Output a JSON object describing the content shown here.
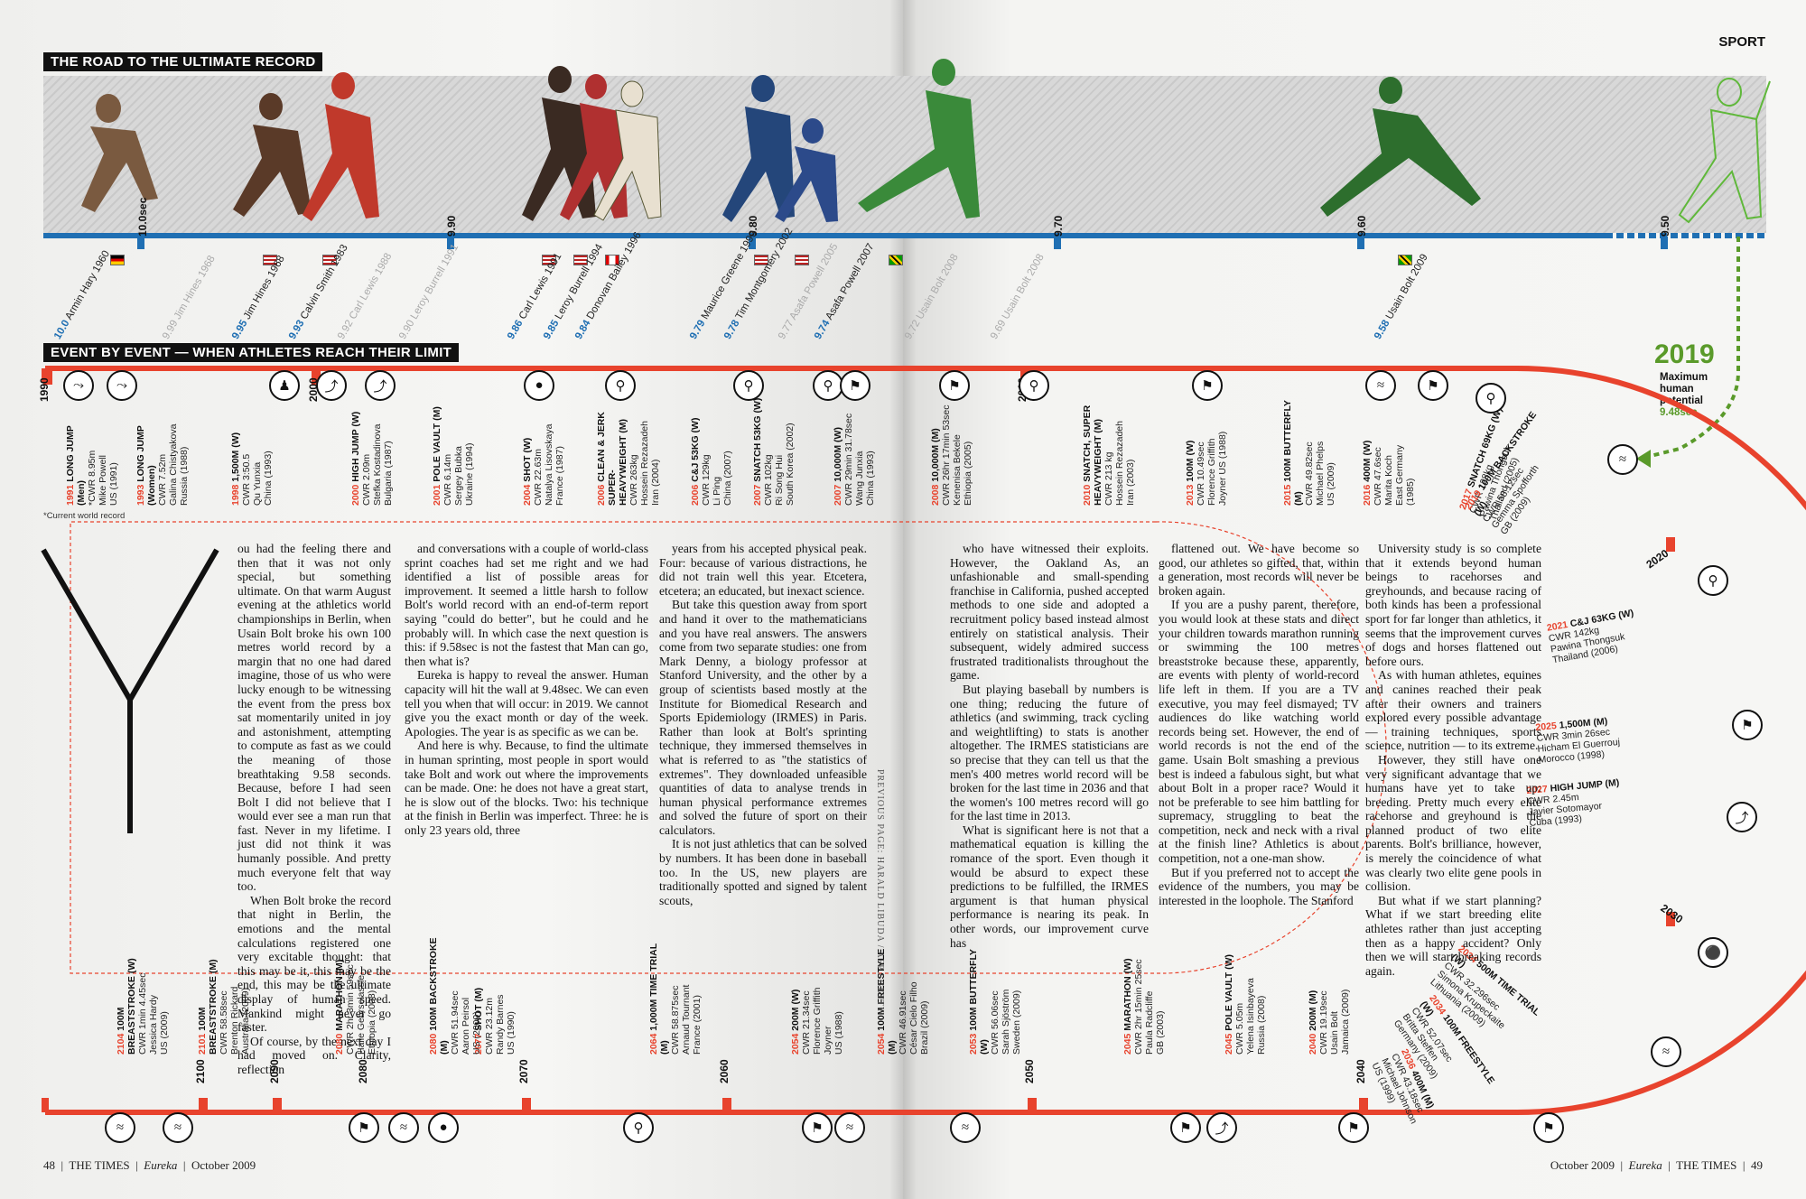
{
  "section": "SPORT",
  "banner1": "THE ROAD TO THE ULTIMATE RECORD",
  "banner2": "EVENT BY EVENT — WHEN ATHLETES REACH THEIR LIMIT",
  "axis_labels": [
    "10.0sec",
    "9.90",
    "9.80",
    "9.70",
    "9.60",
    "9.50"
  ],
  "sprint_records": [
    {
      "time": "10.0",
      "name": "Armin Hary 1960",
      "faded": false
    },
    {
      "time": "9.99",
      "name": "Jim Hines 1968",
      "faded": true
    },
    {
      "time": "9.95",
      "name": "Jim Hines 1968",
      "faded": false
    },
    {
      "time": "9.93",
      "name": "Calvin Smith 1983",
      "faded": false
    },
    {
      "time": "9.92",
      "name": "Carl Lewis 1988",
      "faded": true
    },
    {
      "time": "9.90",
      "name": "Leroy Burrell 1991",
      "faded": true
    },
    {
      "time": "9.86",
      "name": "Carl Lewis 1991",
      "faded": false
    },
    {
      "time": "9.85",
      "name": "Leroy Burrell 1994",
      "faded": false
    },
    {
      "time": "9.84",
      "name": "Donovan Bailey 1996",
      "faded": false
    },
    {
      "time": "9.79",
      "name": "Maurice Greene 1999",
      "faded": false
    },
    {
      "time": "9.78",
      "name": "Tim Montgomery 2002",
      "faded": false
    },
    {
      "time": "9.77",
      "name": "Asafa Powell 2005",
      "faded": true
    },
    {
      "time": "9.74",
      "name": "Asafa Powell 2007",
      "faded": false
    },
    {
      "time": "9.72",
      "name": "Usain Bolt 2008",
      "faded": true
    },
    {
      "time": "9.69",
      "name": "Usain Bolt 2008",
      "faded": true
    },
    {
      "time": "9.58",
      "name": "Usain Bolt 2009",
      "faded": false
    }
  ],
  "max_potential": {
    "year": "2019",
    "line1": "Maximum",
    "line2": "human",
    "line3": "potential",
    "value": "9.48sec"
  },
  "decades_top": [
    "1990",
    "2000",
    "2010"
  ],
  "decades_curve": [
    "2020",
    "2030"
  ],
  "decades_bottom": [
    "2040",
    "2050",
    "2060",
    "2070",
    "2080",
    "2090",
    "2100"
  ],
  "events_top": [
    {
      "year": "1991",
      "event": "LONG JUMP\n(Men)",
      "detail": "*CWR 8.95m\nMike Powell\nUS (1991)"
    },
    {
      "year": "1993",
      "event": "LONG JUMP\n(Women)",
      "detail": "CWR 7.52m\nGalina Chistyakova\nRussia (1988)"
    },
    {
      "year": "1998",
      "event": "1,500M (W)",
      "detail": "CWR 3:50.5\nQu Yunxia\nChina (1993)"
    },
    {
      "year": "2000",
      "event": "HIGH JUMP (W)",
      "detail": "CWR 2.09m\nStefka Kostadinova\nBulgaria (1987)"
    },
    {
      "year": "2001",
      "event": "POLE VAULT (M)",
      "detail": "CWR 6.14m\nSergey Bubka\nUkraine (1994)"
    },
    {
      "year": "2004",
      "event": "SHOT (W)",
      "detail": "CWR 22.63m\nNatalya Lisovskaya\nFrance (1987)"
    },
    {
      "year": "2006",
      "event": "CLEAN & JERK\nSUPER-\nHEAVYWEIGHT (M)",
      "detail": "CWR 263kg\nHossein Rezazadeh\nIran (2004)"
    },
    {
      "year": "2006",
      "event": "C&J 53KG (W)",
      "detail": "CWR 129kg\nLi Ping\nChina (2007)"
    },
    {
      "year": "2007",
      "event": "SNATCH 53KG (W)",
      "detail": "CWR 102kg\nRi Song Hui\nSouth Korea (2002)"
    },
    {
      "year": "2007",
      "event": "10,000M (W)",
      "detail": "CWR 29min 31.78sec\nWang Junxia\nChina (1993)"
    },
    {
      "year": "2008",
      "event": "10,000M (M)",
      "detail": "CWR 26hr 17min 53sec\nKenenisa Bekele\nEthiopia (2005)"
    },
    {
      "year": "2010",
      "event": "SNATCH, SUPER\nHEAVYWEIGHT (M)",
      "detail": "CWR 213 kg\nHossein Rezazadeh\nIran (2003)"
    },
    {
      "year": "2013",
      "event": "100M (W)",
      "detail": "CWR 10.49sec\nFlorence Griffith\nJoyner US (1988)"
    },
    {
      "year": "2015",
      "event": "100M BUTTERFLY\n(M)",
      "detail": "CWR 49.82sec\nMichael Phelps\nUS (2009)"
    },
    {
      "year": "2016",
      "event": "400M (W)",
      "detail": "CWR 47.6sec\nMarita Koch\nEast Germany\n(1985)"
    },
    {
      "year": "2017",
      "event": "SNATCH 69KG (W)",
      "detail": "CWR 128kg\nPawina Thongsuk\nThailand (2005)"
    }
  ],
  "events_curve": [
    {
      "year": "2019",
      "event": "100M BACKSTROKE\n(W)",
      "detail": "CWR 58.12sec\nGemma Spofforth\nGB (2009)"
    },
    {
      "year": "2021",
      "event": "C&J 63KG (W)",
      "detail": "CWR 142kg\nPawina Thongsuk\nThailand (2006)"
    },
    {
      "year": "2025",
      "event": "1,500M (M)",
      "detail": "CWR 3min 26sec\nHicham El Guerrouj\nMorocco (1998)"
    },
    {
      "year": "2027",
      "event": "HIGH JUMP (M)",
      "detail": "CWR 2.45m\nJavier Sotomayor\nCuba (1993)"
    },
    {
      "year": "2034",
      "event": "500M TIME TRIAL\n(W)",
      "detail": "CWR 32.296sec\nSimona Krupeckaite\nLithuania (2009)"
    },
    {
      "year": "2034",
      "event": "100M FREESTYLE\n(W)",
      "detail": "CWR 52.07sec\nBritta Steffen\nGermany (2009)"
    },
    {
      "year": "2036",
      "event": "400M (M)",
      "detail": "CWR 43.18sec\nMichael Johnson\nUS (1999)"
    }
  ],
  "events_bottom": [
    {
      "year": "2040",
      "event": "200M (M)",
      "detail": "CWR 19.19sec\nUsain Bolt\nJamaica (2009)"
    },
    {
      "year": "2045",
      "event": "POLE VAULT (W)",
      "detail": "CWR 5.05m\nYelena Isinbayeva\nRussia (2008)"
    },
    {
      "year": "2045",
      "event": "MARATHON (W)",
      "detail": "CWR 2hr 15min 25sec\nPaula Radcliffe\nGB (2003)"
    },
    {
      "year": "2053",
      "event": "100M BUTTERFLY\n(W)",
      "detail": "CWR 56.06sec\nSarah Sjöström\nSweden (2009)"
    },
    {
      "year": "2054",
      "event": "100M FREESTYLE\n(M)",
      "detail": "CWR 46.91sec\nCésar Cielo Filho\nBrazil (2009)"
    },
    {
      "year": "2054",
      "event": "200M (W)",
      "detail": "CWR 21.34sec\nFlorence Griffith\nJoyner\nUS (1988)"
    },
    {
      "year": "2064",
      "event": "1,000M TIME TRIAL\n(M)",
      "detail": "CWR 58.875sec\nArnaud Tournant\nFrance (2001)"
    },
    {
      "year": "2077",
      "event": "SHOT (M)",
      "detail": "CWR 23.12m\nRandy Barnes\nUS (1990)"
    },
    {
      "year": "2080",
      "event": "100M BACKSTROKE\n(M)",
      "detail": "CWR 51.94sec\nAaron Peirsol\nUS (2009)"
    },
    {
      "year": "2080",
      "event": "MARATHON (M)",
      "detail": "CWR 2hr 3min 59sec\nHaile Gebrselassie\nEthiopia (2008)"
    },
    {
      "year": "2101",
      "event": "100M\nBREASTSTROKE (M)",
      "detail": "CWR 58.58sec\nBrenton Rickard\nAustralia (2009)"
    },
    {
      "year": "2104",
      "event": "100M\nBREASTSTROKE (W)",
      "detail": "CWR 1min 4.45sec\nJessica Hardy\nUS (2009)"
    }
  ],
  "note": "*Current world record",
  "credit": "PREVIOUS PAGE: HARALD LIBUDA / AFP / GETTY",
  "dropcap": "Y",
  "article": {
    "col1": [
      "ou had the feeling there and then that it was not only special, but something ultimate. On that warm August evening at the athletics world championships in Berlin, when Usain Bolt broke his own 100 metres world record by a margin that no one had dared imagine, those of us who were lucky enough to be witnessing the event from the press box sat momentarily united in joy and astonishment, attempting to compute as fast as we could the meaning of those breathtaking 9.58 seconds. Because, before I had seen Bolt I did not believe that I would ever see a man run that fast. Never in my lifetime. I just did not think it was humanly possible. And pretty much everyone felt that way too.",
      "When Bolt broke the record that night in Berlin, the emotions and the mental calculations registered one very excitable thought: that this may be it, this may be the end, this may be the ultimate display of human speed. Mankind might never go faster.",
      "Of course, by the next day I had moved on. Clarity, reflection"
    ],
    "col2": [
      "and conversations with a couple of world-class sprint coaches had set me right and we had identified a list of possible areas for improvement. It seemed a little harsh to follow Bolt's world record with an end-of-term report saying \"could do better\", but he could and he probably will. In which case the next question is this: if 9.58sec is not the fastest that Man can go, then what is?",
      "Eureka is happy to reveal the answer. Human capacity will hit the wall at 9.48sec. We can even tell you when that will occur: in 2019. We cannot give you the exact month or day of the week. Apologies. The year is as specific as we can be.",
      "And here is why. Because, to find the ultimate in human sprinting, most people in sport would take Bolt and work out where the improvements can be made. One: he does not have a great start, he is slow out of the blocks. Two: his technique at the finish in Berlin was imperfect. Three: he is only 23 years old, three"
    ],
    "col3": [
      "years from his accepted physical peak. Four: because of various distractions, he did not train well this year. Etcetera, etcetera; an educated, but inexact science.",
      "But take this question away from sport and hand it over to the mathematicians and you have real answers. The answers come from two separate studies: one from Mark Denny, a biology professor at Stanford University, and the other by a group of scientists based mostly at the Institute for Biomedical Research and Sports Epidemiology (IRMES) in Paris. Rather than look at Bolt's sprinting technique, they immersed themselves in what is referred to as \"the statistics of extremes\". They downloaded unfeasible quantities of data to analyse trends in human physical performance extremes and solved the future of sport on their calculators.",
      "It is not just athletics that can be solved by numbers. It has been done in baseball too. In the US, new players are traditionally spotted and signed by talent scouts,"
    ],
    "col4": [
      "who have witnessed their exploits. However, the Oakland As, an unfashionable and small-spending franchise in California, pushed accepted methods to one side and adopted a recruitment policy based instead almost entirely on statistical analysis. Their subsequent, widely admired success frustrated traditionalists throughout the game.",
      "But playing baseball by numbers is one thing; reducing the future of athletics (and swimming, track cycling and weightlifting) to stats is another altogether. The IRMES statisticians are so precise that they can tell us that the men's 400 metres world record will be broken for the last time in 2036 and that the women's 100 metres record will go for the last time in 2013.",
      "What is significant here is not that a mathematical equation is killing the romance of the sport. Even though it would be absurd to expect these predictions to be fulfilled, the IRMES argument is that human physical performance is nearing its peak. In other words, our improvement curve has"
    ],
    "col5": [
      "flattened out. We have become so good, our athletes so gifted, that, within a generation, most records will never be broken again.",
      "If you are a pushy parent, therefore, you would look at these stats and direct your children towards marathon running or swimming the 100 metres breaststroke because these, apparently, are events with plenty of world-record life left in them. If you are a TV executive, you may feel dismayed; TV audiences do like watching world records being set. However, the end of world records is not the end of the game. Usain Bolt smashing a previous best is indeed a fabulous sight, but what about Bolt in a proper race? Would it not be preferable to see him battling for supremacy, struggling to beat the competition, neck and neck with a rival at the finish line? Athletics is about competition, not a one-man show.",
      "But if you preferred not to accept the evidence of the numbers, you may be interested in the loophole. The Stanford"
    ],
    "col6": [
      "University study is so complete that it extends beyond human beings to racehorses and greyhounds, and because racing of both kinds has been a professional sport for far longer than athletics, it seems that the improvement curves of dogs and horses flattened out before ours.",
      "As with human athletes, equines and canines reached their peak after their owners and trainers explored every possible advantage — training techniques, sports science, nutrition — to its extreme.",
      "However, they still have one very significant advantage that we humans have yet to take up: breeding. Pretty much every elite racehorse and greyhound is the planned product of two elite parents. Bolt's brilliance, however, is merely the coincidence of what was clearly two elite gene pools in collision.",
      "But what if we start planning? What if we start breeding elite athletes rather than just accepting then as a happy accident? Only then we will start breaking records again."
    ]
  },
  "footer_left": {
    "page": "48",
    "pub": "THE TIMES",
    "mag": "Eureka",
    "date": "October 2009"
  },
  "footer_right": {
    "date": "October 2009",
    "mag": "Eureka",
    "pub": "THE TIMES",
    "page": "49"
  }
}
